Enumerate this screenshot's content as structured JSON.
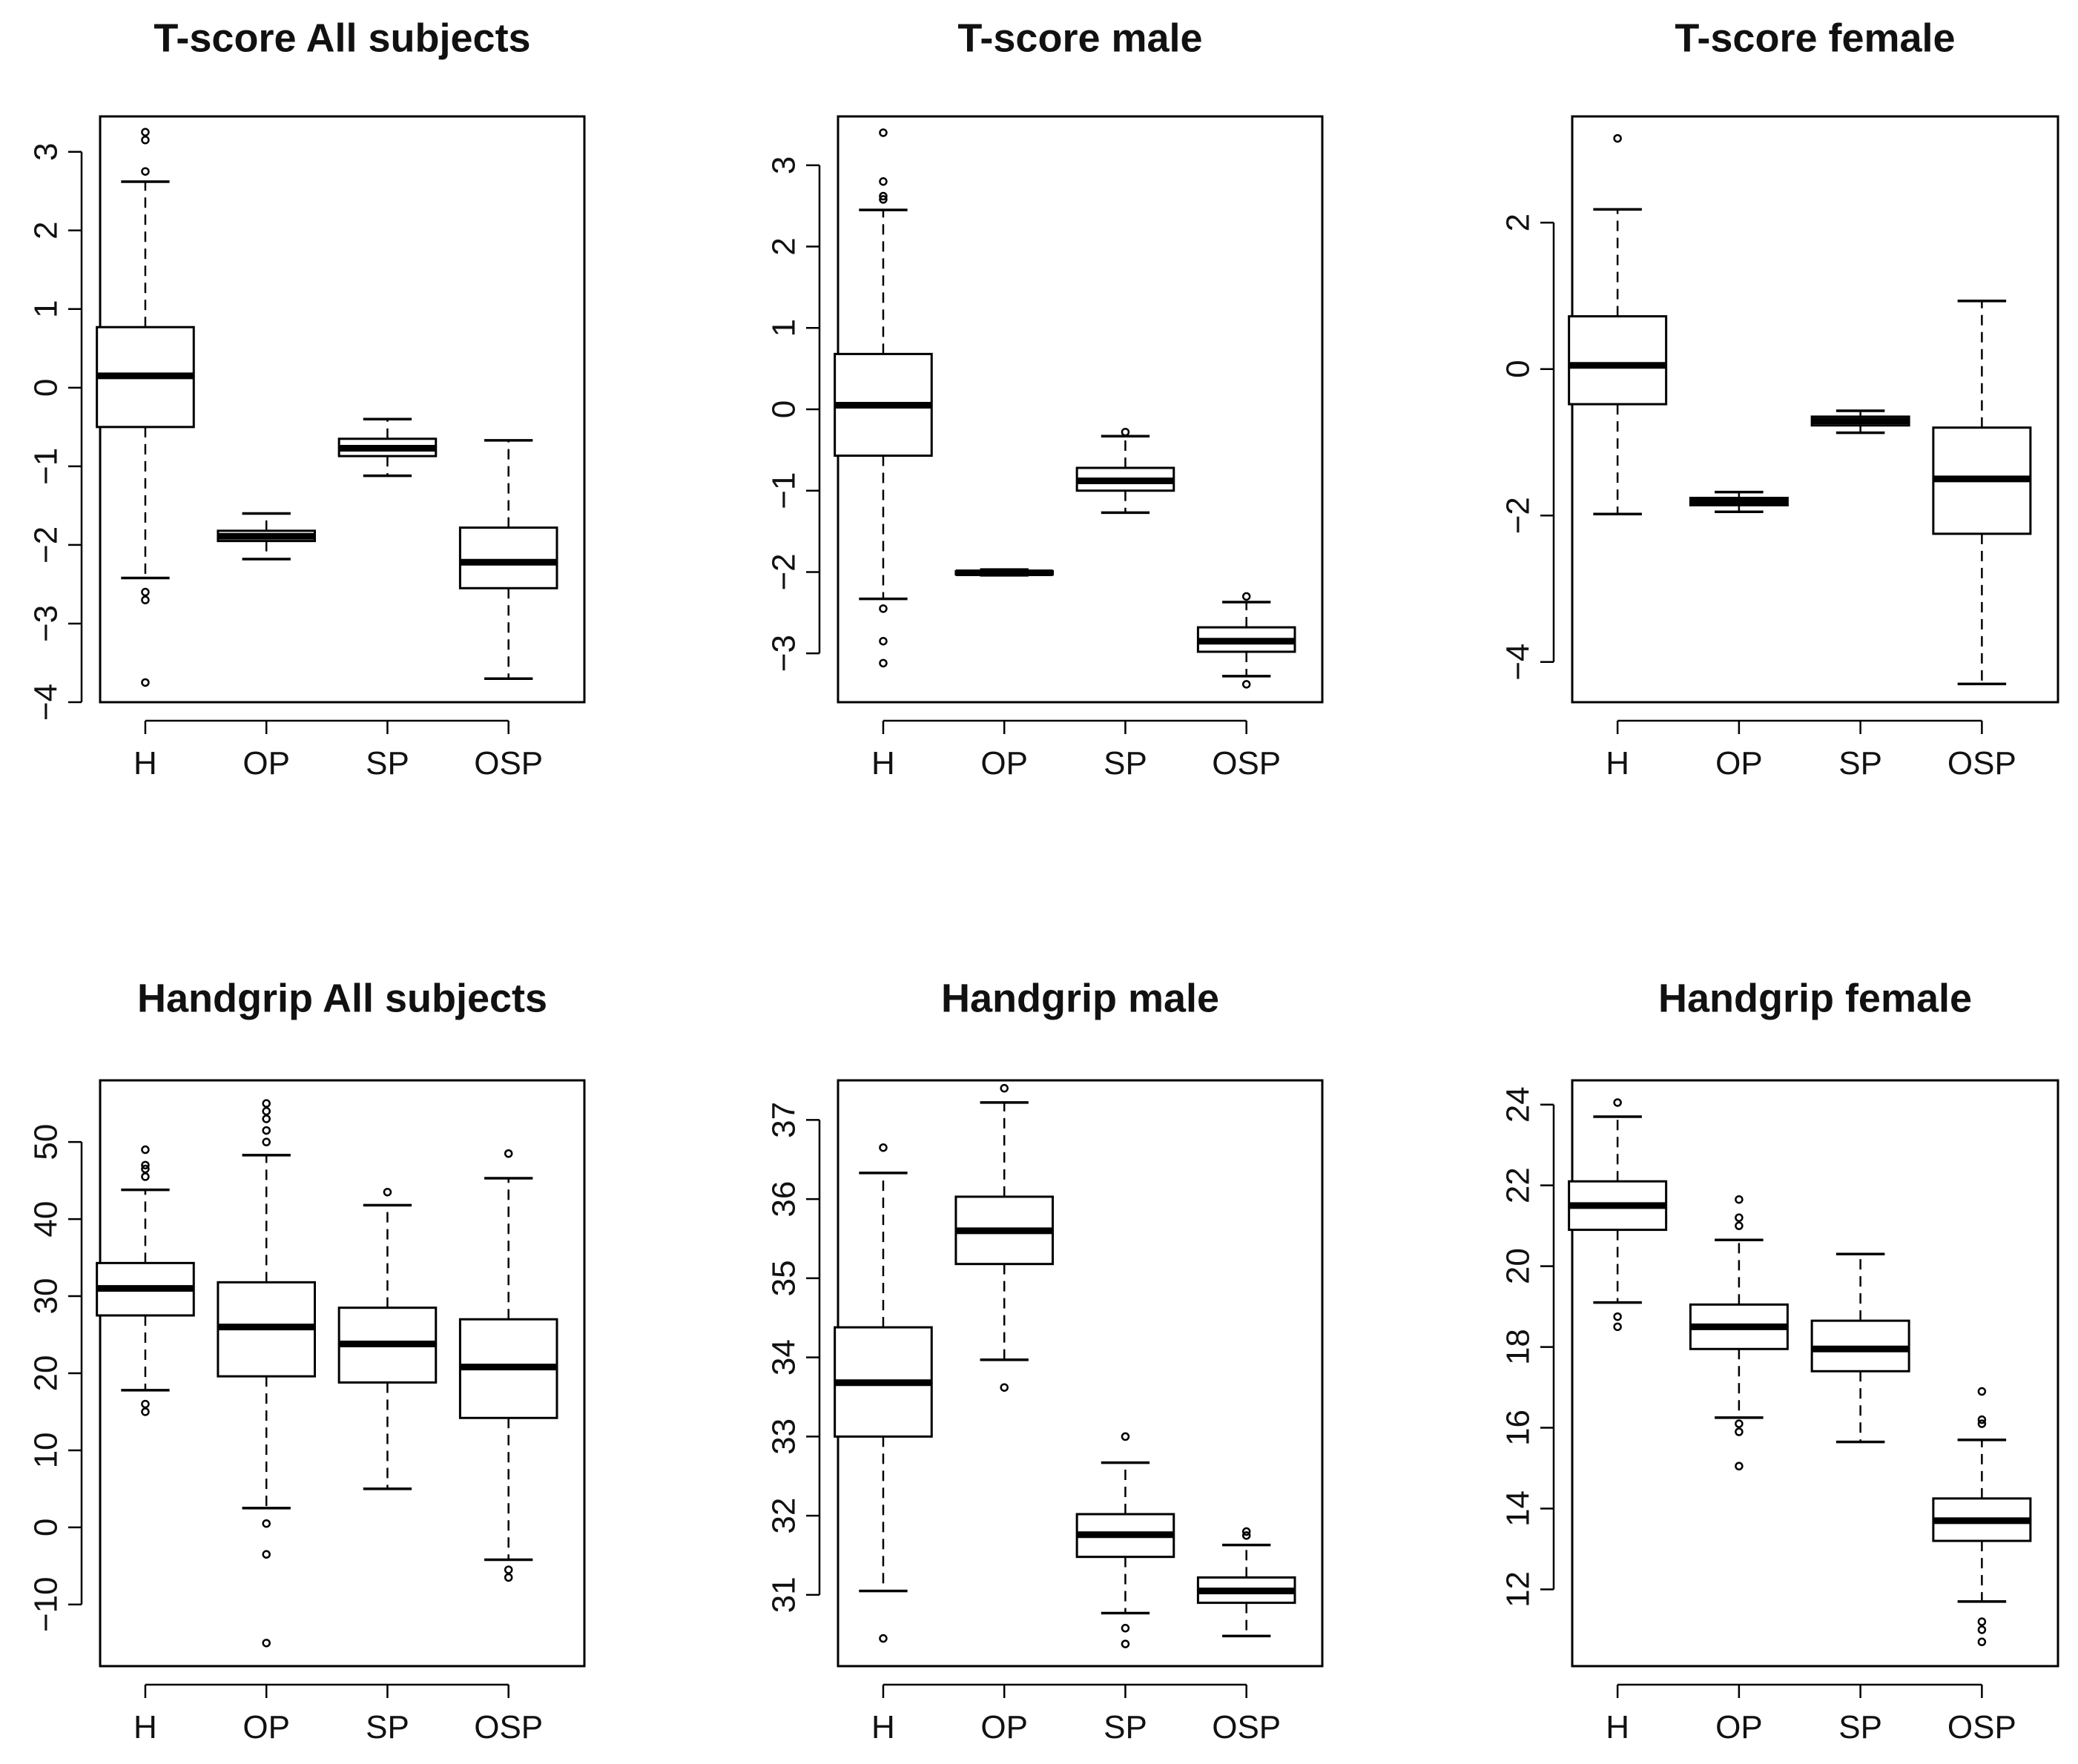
{
  "chart_data": [
    {
      "type": "box",
      "title": "T-score All subjects",
      "categories": [
        "H",
        "OP",
        "SP",
        "OSP"
      ],
      "ylim": [
        -4,
        3.45
      ],
      "yticks": [
        -4,
        -3,
        -2,
        -1,
        0,
        1,
        2,
        3
      ],
      "boxes": [
        {
          "q1": -0.5,
          "median": 0.15,
          "q3": 0.77,
          "whisker_low": -2.42,
          "whisker_high": 2.62,
          "outliers": [
            2.75,
            3.15,
            3.25,
            -2.6,
            -2.7,
            -3.75
          ]
        },
        {
          "q1": -1.95,
          "median": -1.89,
          "q3": -1.82,
          "whisker_low": -2.18,
          "whisker_high": -1.6,
          "outliers": []
        },
        {
          "q1": -0.87,
          "median": -0.77,
          "q3": -0.65,
          "whisker_low": -1.12,
          "whisker_high": -0.4,
          "outliers": []
        },
        {
          "q1": -2.55,
          "median": -2.22,
          "q3": -1.78,
          "whisker_low": -3.7,
          "whisker_high": -0.67,
          "outliers": []
        }
      ]
    },
    {
      "type": "box",
      "title": "T-score male",
      "categories": [
        "H",
        "OP",
        "SP",
        "OSP"
      ],
      "ylim": [
        -3.6,
        3.6
      ],
      "yticks": [
        -3,
        -2,
        -1,
        0,
        1,
        2,
        3
      ],
      "boxes": [
        {
          "q1": -0.57,
          "median": 0.05,
          "q3": 0.68,
          "whisker_low": -2.33,
          "whisker_high": 2.45,
          "outliers": [
            2.58,
            2.62,
            2.8,
            3.4,
            -2.45,
            -2.85,
            -3.12
          ]
        },
        {
          "q1": -2.03,
          "median": -2.01,
          "q3": -1.99,
          "whisker_low": -2.04,
          "whisker_high": -1.97,
          "outliers": []
        },
        {
          "q1": -1.0,
          "median": -0.88,
          "q3": -0.72,
          "whisker_low": -1.27,
          "whisker_high": -0.33,
          "outliers": [
            -0.28
          ]
        },
        {
          "q1": -2.98,
          "median": -2.85,
          "q3": -2.68,
          "whisker_low": -3.28,
          "whisker_high": -2.37,
          "outliers": [
            -2.3,
            -3.38
          ]
        }
      ]
    },
    {
      "type": "box",
      "title": "T-score female",
      "categories": [
        "H",
        "OP",
        "SP",
        "OSP"
      ],
      "ylim": [
        -4.55,
        3.45
      ],
      "yticks": [
        -4,
        -2,
        0,
        2
      ],
      "boxes": [
        {
          "q1": -0.48,
          "median": 0.05,
          "q3": 0.72,
          "whisker_low": -1.98,
          "whisker_high": 2.18,
          "outliers": [
            3.15
          ]
        },
        {
          "q1": -1.86,
          "median": -1.81,
          "q3": -1.76,
          "whisker_low": -1.95,
          "whisker_high": -1.68,
          "outliers": []
        },
        {
          "q1": -0.77,
          "median": -0.71,
          "q3": -0.65,
          "whisker_low": -0.87,
          "whisker_high": -0.57,
          "outliers": []
        },
        {
          "q1": -2.25,
          "median": -1.5,
          "q3": -0.8,
          "whisker_low": -4.3,
          "whisker_high": 0.93,
          "outliers": []
        }
      ]
    },
    {
      "type": "box",
      "title": "Handgrip All subjects",
      "categories": [
        "H",
        "OP",
        "SP",
        "OSP"
      ],
      "ylim": [
        -18,
        58
      ],
      "yticks": [
        -10,
        0,
        10,
        20,
        30,
        40,
        50
      ],
      "boxes": [
        {
          "q1": 27.5,
          "median": 31.0,
          "q3": 34.3,
          "whisker_low": 17.8,
          "whisker_high": 43.8,
          "outliers": [
            45.5,
            46.5,
            47.0,
            49.0,
            16.0,
            15.0
          ]
        },
        {
          "q1": 19.6,
          "median": 26.0,
          "q3": 31.8,
          "whisker_low": 2.5,
          "whisker_high": 48.3,
          "outliers": [
            50.0,
            51.5,
            53.0,
            54.0,
            55.0,
            0.5,
            -3.5,
            -15.0
          ]
        },
        {
          "q1": 18.8,
          "median": 23.8,
          "q3": 28.5,
          "whisker_low": 5.0,
          "whisker_high": 41.8,
          "outliers": [
            43.5
          ]
        },
        {
          "q1": 14.2,
          "median": 20.8,
          "q3": 27.0,
          "whisker_low": -4.2,
          "whisker_high": 45.3,
          "outliers": [
            48.5,
            -5.5,
            -6.5
          ]
        }
      ]
    },
    {
      "type": "box",
      "title": "Handgrip male",
      "categories": [
        "H",
        "OP",
        "SP",
        "OSP"
      ],
      "ylim": [
        30.1,
        37.5
      ],
      "yticks": [
        31,
        32,
        33,
        34,
        35,
        36,
        37
      ],
      "boxes": [
        {
          "q1": 33.0,
          "median": 33.68,
          "q3": 34.38,
          "whisker_low": 31.05,
          "whisker_high": 36.33,
          "outliers": [
            36.65,
            30.45
          ]
        },
        {
          "q1": 35.18,
          "median": 35.6,
          "q3": 36.03,
          "whisker_low": 33.97,
          "whisker_high": 37.22,
          "outliers": [
            37.4,
            33.62
          ]
        },
        {
          "q1": 31.48,
          "median": 31.76,
          "q3": 32.02,
          "whisker_low": 30.77,
          "whisker_high": 32.67,
          "outliers": [
            33.0,
            30.58,
            30.38
          ]
        },
        {
          "q1": 30.9,
          "median": 31.05,
          "q3": 31.22,
          "whisker_low": 30.48,
          "whisker_high": 31.63,
          "outliers": [
            31.75,
            31.8
          ]
        }
      ]
    },
    {
      "type": "box",
      "title": "Handgrip female",
      "categories": [
        "H",
        "OP",
        "SP",
        "OSP"
      ],
      "ylim": [
        10.1,
        24.6
      ],
      "yticks": [
        12,
        14,
        16,
        18,
        20,
        22,
        24
      ],
      "boxes": [
        {
          "q1": 20.9,
          "median": 21.5,
          "q3": 22.1,
          "whisker_low": 19.1,
          "whisker_high": 23.7,
          "outliers": [
            24.05,
            18.75,
            18.5
          ]
        },
        {
          "q1": 17.95,
          "median": 18.5,
          "q3": 19.05,
          "whisker_low": 16.25,
          "whisker_high": 20.65,
          "outliers": [
            21.0,
            21.2,
            21.65,
            16.1,
            15.9,
            15.05
          ]
        },
        {
          "q1": 17.4,
          "median": 17.95,
          "q3": 18.65,
          "whisker_low": 15.65,
          "whisker_high": 20.3,
          "outliers": []
        },
        {
          "q1": 13.2,
          "median": 13.7,
          "q3": 14.25,
          "whisker_low": 11.7,
          "whisker_high": 15.7,
          "outliers": [
            16.1,
            16.2,
            16.9,
            11.2,
            11.0,
            10.7
          ]
        }
      ]
    }
  ]
}
